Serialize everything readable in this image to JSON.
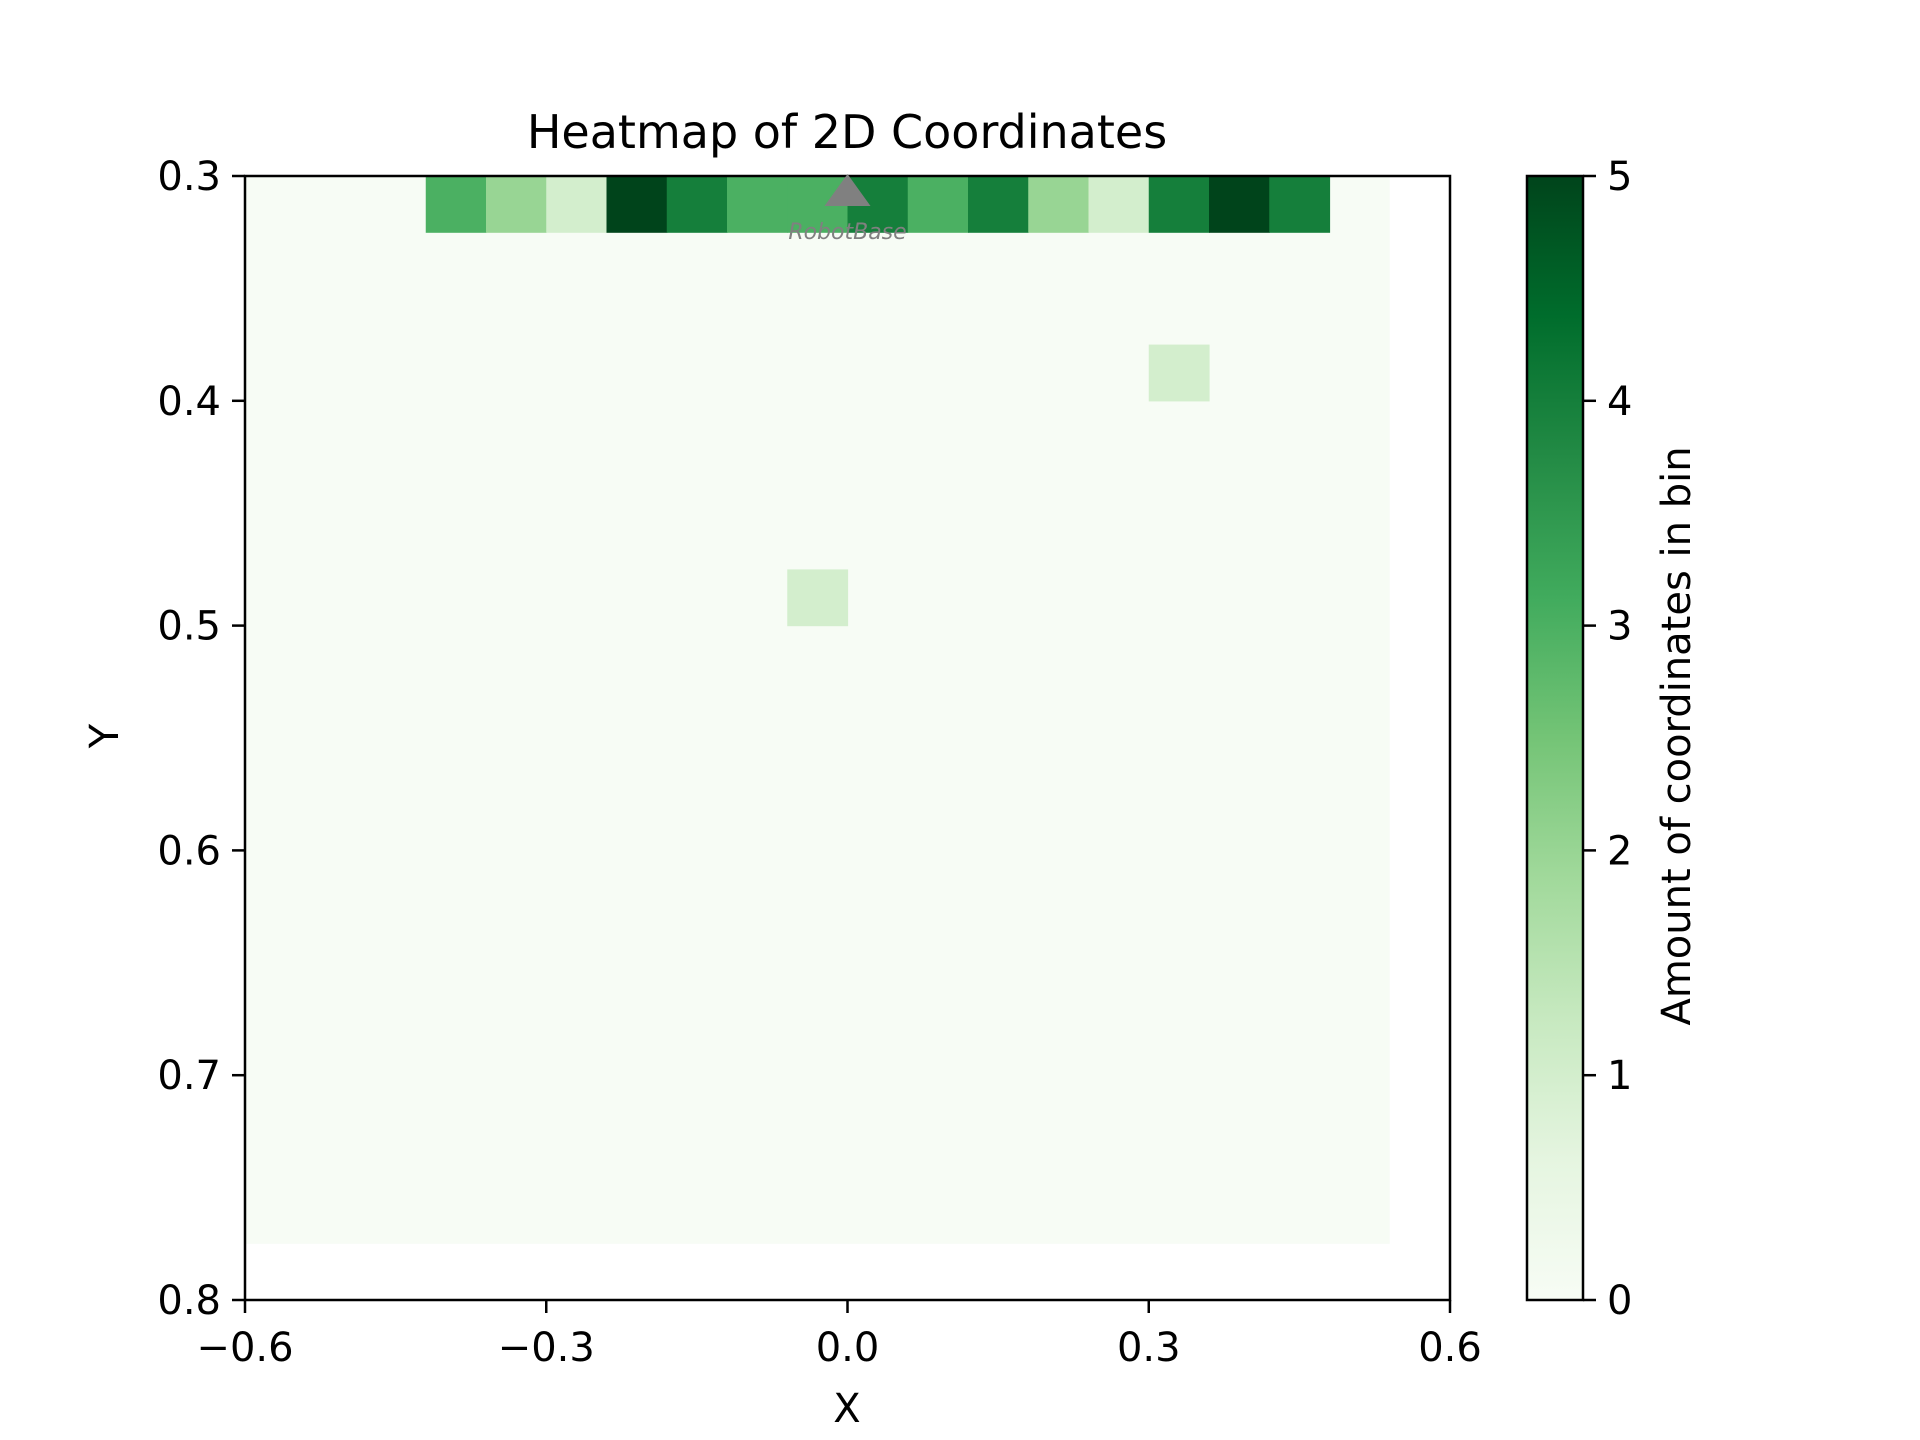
{
  "chart_data": {
    "type": "heatmap",
    "title": "Heatmap of 2D Coordinates",
    "xlabel": "X",
    "ylabel": "Y",
    "xlim": [
      -0.6,
      0.6
    ],
    "ylim": [
      0.8,
      0.3
    ],
    "y_inverted": true,
    "x_ticks": [
      "−0.6",
      "−0.3",
      "0.0",
      "0.3",
      "0.6"
    ],
    "x_tick_values": [
      -0.6,
      -0.3,
      0.0,
      0.3,
      0.6
    ],
    "y_ticks": [
      "0.3",
      "0.4",
      "0.5",
      "0.6",
      "0.7",
      "0.8"
    ],
    "y_tick_values": [
      0.3,
      0.4,
      0.5,
      0.6,
      0.7,
      0.8
    ],
    "bin_x_range": [
      -0.6,
      0.54
    ],
    "bin_y_range": [
      0.3,
      0.775
    ],
    "bin_width": 0.06,
    "bin_height": 0.025,
    "colormap": "Greens",
    "colormap_stops": [
      "#f7fcf5",
      "#e5f5e0",
      "#c7e9c0",
      "#a1d99b",
      "#74c476",
      "#41ab5d",
      "#238b45",
      "#006d2c",
      "#00441b"
    ],
    "colorbar": {
      "label": "Amount of coordinates in bin",
      "range": [
        0,
        5
      ],
      "ticks": [
        "0",
        "1",
        "2",
        "3",
        "4",
        "5"
      ],
      "tick_values": [
        0,
        1,
        2,
        3,
        4,
        5
      ]
    },
    "nonzero_bins": [
      {
        "x0": -0.42,
        "y0": 0.3,
        "count": 3
      },
      {
        "x0": -0.36,
        "y0": 0.3,
        "count": 2
      },
      {
        "x0": -0.3,
        "y0": 0.3,
        "count": 1
      },
      {
        "x0": -0.24,
        "y0": 0.3,
        "count": 5
      },
      {
        "x0": -0.18,
        "y0": 0.3,
        "count": 4
      },
      {
        "x0": -0.12,
        "y0": 0.3,
        "count": 3
      },
      {
        "x0": -0.06,
        "y0": 0.3,
        "count": 3
      },
      {
        "x0": 0.0,
        "y0": 0.3,
        "count": 4
      },
      {
        "x0": 0.06,
        "y0": 0.3,
        "count": 3
      },
      {
        "x0": 0.12,
        "y0": 0.3,
        "count": 4
      },
      {
        "x0": 0.18,
        "y0": 0.3,
        "count": 2
      },
      {
        "x0": 0.24,
        "y0": 0.3,
        "count": 1
      },
      {
        "x0": 0.3,
        "y0": 0.3,
        "count": 4
      },
      {
        "x0": 0.36,
        "y0": 0.3,
        "count": 5
      },
      {
        "x0": 0.42,
        "y0": 0.3,
        "count": 4
      },
      {
        "x0": 0.3,
        "y0": 0.375,
        "count": 1
      },
      {
        "x0": -0.06,
        "y0": 0.475,
        "count": 1
      }
    ],
    "annotations": [
      {
        "text": "RobotBase",
        "x": 0.0,
        "y": 0.3,
        "marker": "triangle-up",
        "color": "#808080"
      }
    ]
  }
}
